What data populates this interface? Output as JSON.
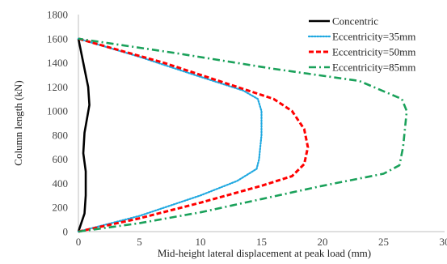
{
  "chart_data": {
    "type": "line",
    "title": "",
    "xlabel": "Mid-height lateral displacement at peak load (mm)",
    "ylabel": "Column length (kN)",
    "xlim": [
      0,
      30
    ],
    "ylim": [
      0,
      1800
    ],
    "x_ticks": [
      0,
      5,
      10,
      15,
      20,
      25,
      30
    ],
    "y_ticks": [
      0,
      200,
      400,
      600,
      800,
      1000,
      1200,
      1400,
      1600,
      1800
    ],
    "x_tick_labels": [
      "0",
      "5",
      "10",
      "15",
      "20",
      "25",
      "30"
    ],
    "y_tick_labels": [
      "0",
      "200",
      "400",
      "600",
      "800",
      "1000",
      "1200",
      "1400",
      "1600",
      "1800"
    ],
    "grid": false,
    "legend_position": "top-right",
    "series": [
      {
        "name": "Concentric",
        "color": "#000000",
        "style": "solid",
        "points": [
          [
            0,
            0
          ],
          [
            0.5,
            150
          ],
          [
            0.6,
            300
          ],
          [
            0.6,
            500
          ],
          [
            0.4,
            650
          ],
          [
            0.5,
            820
          ],
          [
            0.9,
            1050
          ],
          [
            0.8,
            1200
          ],
          [
            0.4,
            1400
          ],
          [
            0,
            1600
          ]
        ]
      },
      {
        "name": "Eccentricity=35mm",
        "color": "#1fa8e0",
        "style": "dotted",
        "points": [
          [
            0,
            0
          ],
          [
            5,
            130
          ],
          [
            10,
            300
          ],
          [
            13,
            420
          ],
          [
            14.6,
            520
          ],
          [
            14.8,
            600
          ],
          [
            15,
            800
          ],
          [
            15,
            1000
          ],
          [
            14.7,
            1100
          ],
          [
            13.5,
            1170
          ],
          [
            9.5,
            1300
          ],
          [
            5,
            1450
          ],
          [
            0,
            1600
          ]
        ]
      },
      {
        "name": "Eccentricity=50mm",
        "color": "#ff0000",
        "style": "dashed",
        "points": [
          [
            0,
            0
          ],
          [
            5,
            110
          ],
          [
            10,
            240
          ],
          [
            15,
            380
          ],
          [
            17.5,
            460
          ],
          [
            18.5,
            560
          ],
          [
            18.8,
            700
          ],
          [
            18.5,
            850
          ],
          [
            17.5,
            1000
          ],
          [
            16,
            1100
          ],
          [
            13,
            1200
          ],
          [
            7,
            1400
          ],
          [
            0,
            1600
          ]
        ]
      },
      {
        "name": "Eccentricity=85mm",
        "color": "#1aa15a",
        "style": "dashdot",
        "points": [
          [
            0,
            0
          ],
          [
            5,
            70
          ],
          [
            10,
            160
          ],
          [
            15,
            270
          ],
          [
            20,
            380
          ],
          [
            25,
            480
          ],
          [
            26.3,
            550
          ],
          [
            26.6,
            700
          ],
          [
            26.9,
            1000
          ],
          [
            26.5,
            1100
          ],
          [
            23,
            1250
          ],
          [
            16,
            1350
          ],
          [
            8,
            1480
          ],
          [
            0,
            1600
          ]
        ]
      }
    ]
  }
}
